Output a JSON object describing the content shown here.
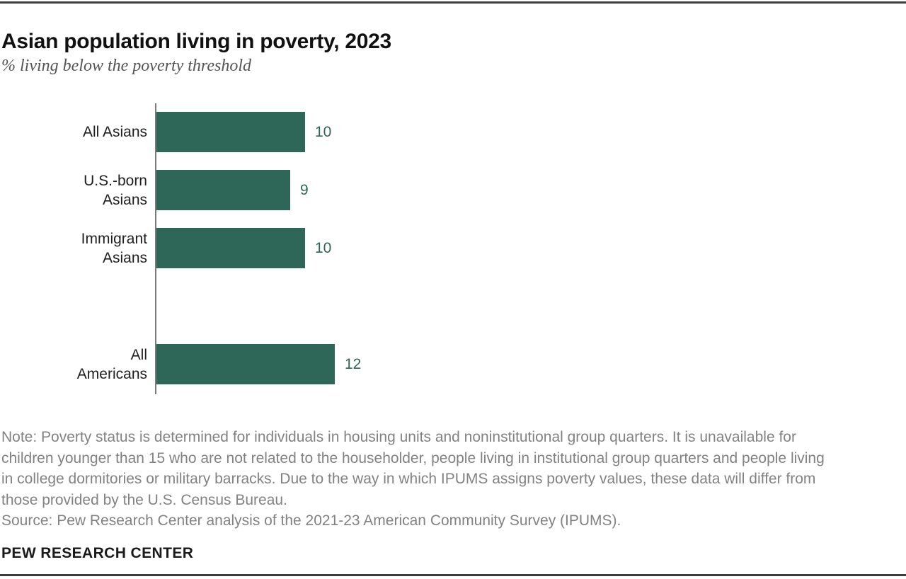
{
  "header": {
    "title": "Asian population living in poverty, 2023",
    "subtitle": "% living below the poverty threshold"
  },
  "chart_data": {
    "type": "bar",
    "orientation": "horizontal",
    "title": "Asian population living in poverty, 2023",
    "subtitle": "% living below the poverty threshold",
    "unit": "% living below the poverty threshold",
    "categories": [
      "All Asians",
      "U.S.-born\nAsians",
      "Immigrant\nAsians",
      "All\nAmericans"
    ],
    "values": [
      10,
      9,
      10,
      12
    ],
    "value_labels": [
      "10",
      "9",
      "10",
      "12"
    ],
    "row_slots": [
      0,
      1,
      2,
      4
    ],
    "group_break_after_index": 2,
    "xlim": [
      0,
      12
    ],
    "axis_labels_visible": false,
    "grid": false,
    "legend": false,
    "bar_color": "#2e6657",
    "value_label_color": "#2e6657",
    "axis_color": "#7a7a7a"
  },
  "notes": {
    "lines": [
      "Note: Poverty status is determined for individuals in housing units and noninstitutional group quarters. It is unavailable for",
      "children younger than 15 who are not related to the householder, people living in institutional group quarters and people living",
      "in college dormitories or military barracks. Due to the way in which IPUMS assigns poverty values, these data will differ from",
      "those provided by the U.S. Census Bureau.",
      "Source: Pew Research Center analysis of the 2021-23 American Community Survey (IPUMS)."
    ]
  },
  "footer": {
    "brand": "PEW RESEARCH CENTER"
  }
}
